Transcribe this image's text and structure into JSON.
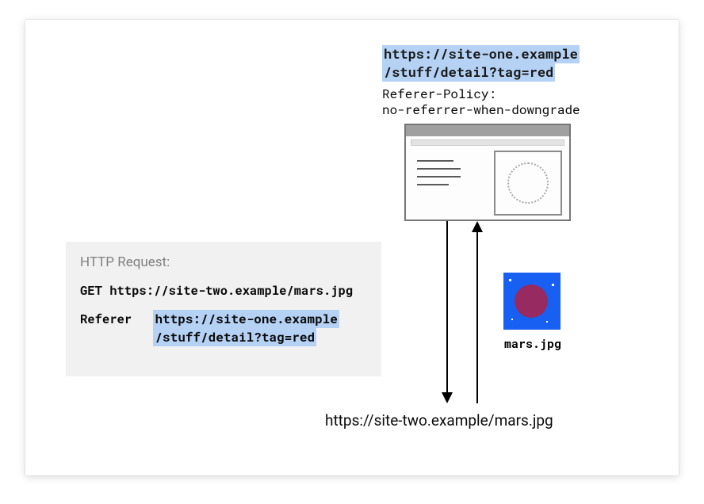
{
  "diagram": {
    "type": "infographic",
    "card_bg": "#ffffff",
    "highlight_bg": "#b5d2f5",
    "text_color": "#0a0a0a",
    "panel_bg": "#f1f1f1",
    "border_gray": "#777777",
    "mars_bg": "#1860f2",
    "mars_planet": "#972a60"
  },
  "top_url": {
    "line1": "https://site-one.example",
    "line2": "/stuff/detail?tag=red"
  },
  "policy": {
    "line1": "Referer-Policy:",
    "line2": "no-referrer-when-downgrade"
  },
  "request": {
    "title": "HTTP Request:",
    "get": "GET https://site-two.example/mars.jpg",
    "referer_label": "Referer",
    "referer_line1": "https://site-one.example",
    "referer_line2": "/stuff/detail?tag=red"
  },
  "mars": {
    "filename": "mars.jpg"
  },
  "bottom_url": "https://site-two.example/mars.jpg"
}
